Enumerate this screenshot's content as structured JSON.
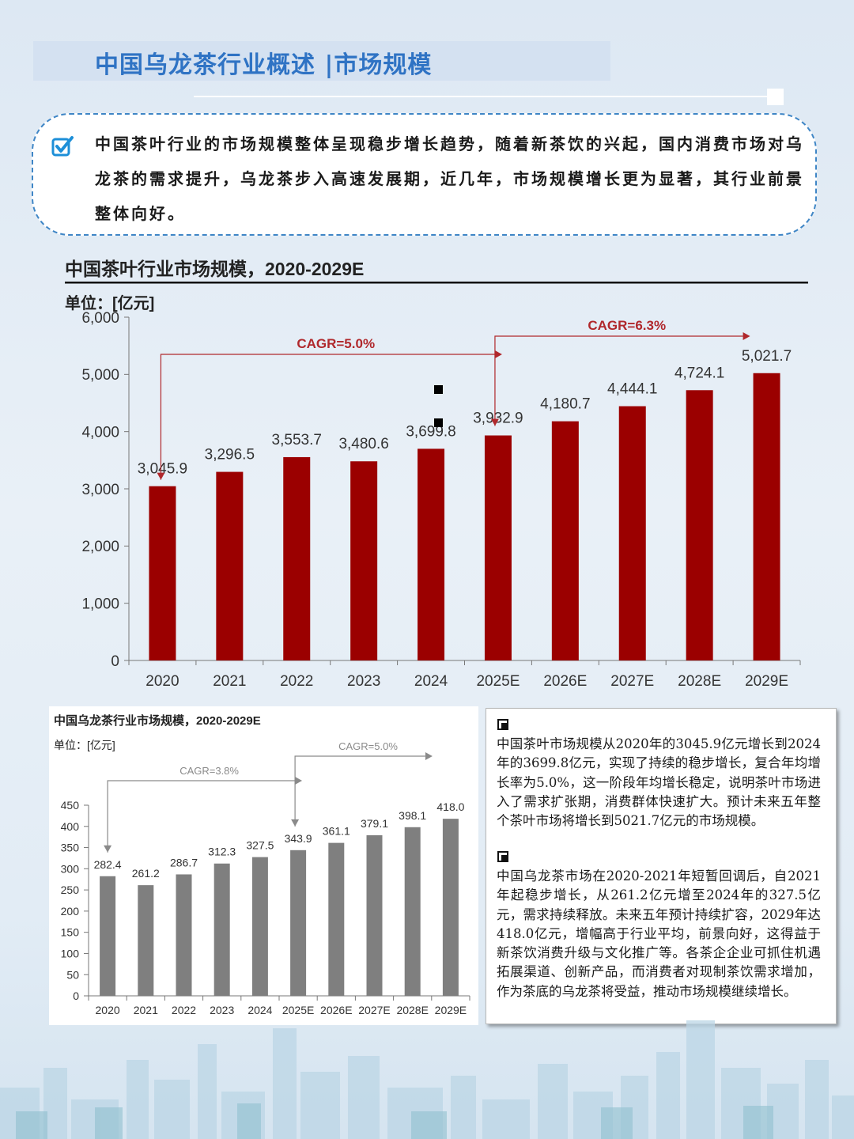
{
  "header": {
    "title": "中国乌龙茶行业概述 |市场规模"
  },
  "summary": {
    "text": "中国茶叶行业的市场规模整体呈现稳步增长趋势，随着新茶饮的兴起，国内消费市场对乌龙茶的需求提升，乌龙茶步入高速发展期，近几年，市场规模增长更为显著，其行业前景整体向好。"
  },
  "colors": {
    "title_blue": "#2f73c4",
    "bar_red": "#9b0000",
    "bar_gray": "#7f7f7f",
    "arrow_red": "#b0282c",
    "arrow_gray": "#8a8a8a"
  },
  "chart_data": [
    {
      "type": "bar",
      "title": "中国茶叶行业市场规模，2020-2029E",
      "unit_label": "单位：[亿元]",
      "categories": [
        "2020",
        "2021",
        "2022",
        "2023",
        "2024",
        "2025E",
        "2026E",
        "2027E",
        "2028E",
        "2029E"
      ],
      "values": [
        3045.9,
        3296.5,
        3553.7,
        3480.6,
        3699.8,
        3932.9,
        4180.7,
        4444.1,
        4724.1,
        5021.7
      ],
      "value_labels": [
        "3,045.9",
        "3,296.5",
        "3,553.7",
        "3,480.6",
        "3,699.8",
        "3,932.9",
        "4,180.7",
        "4,444.1",
        "4,724.1",
        "5,021.7"
      ],
      "ylim": [
        0,
        6000
      ],
      "yticks": [
        "0",
        "1,000",
        "2,000",
        "3,000",
        "4,000",
        "5,000",
        "6,000"
      ],
      "annotations": [
        {
          "text": "CAGR=5.0%",
          "from": "2020",
          "to": "2025E"
        },
        {
          "text": "CAGR=6.3%",
          "from": "2025E",
          "to": "2029E"
        }
      ]
    },
    {
      "type": "bar",
      "title": "中国乌龙茶行业市场规模，2020-2029E",
      "unit_label": "单位：[亿元]",
      "categories": [
        "2020",
        "2021",
        "2022",
        "2023",
        "2024",
        "2025E",
        "2026E",
        "2027E",
        "2028E",
        "2029E"
      ],
      "values": [
        282.4,
        261.2,
        286.7,
        312.3,
        327.5,
        343.9,
        361.1,
        379.1,
        398.1,
        418.0
      ],
      "value_labels": [
        "282.4",
        "261.2",
        "286.7",
        "312.3",
        "327.5",
        "343.9",
        "361.1",
        "379.1",
        "398.1",
        "418.0"
      ],
      "ylim": [
        0,
        450
      ],
      "yticks": [
        "0",
        "50",
        "100",
        "150",
        "200",
        "250",
        "300",
        "350",
        "400",
        "450"
      ],
      "annotations": [
        {
          "text": "CAGR=3.8%",
          "from": "2020",
          "to": "2025E"
        },
        {
          "text": "CAGR=5.0%",
          "from": "2025E",
          "to": "2029E"
        }
      ]
    }
  ],
  "notes": [
    "中国茶叶市场规模从2020年的3045.9亿元增长到2024年的3699.8亿元，实现了持续的稳步增长，复合年均增长率为5.0%，这一阶段年均增长稳定，说明茶叶市场进入了需求扩张期，消费群体快速扩大。预计未来五年整个茶叶市场将增长到5021.7亿元的市场规模。",
    "中国乌龙茶市场在2020-2021年短暂回调后，自2021年起稳步增长，从261.2亿元增至2024年的327.5亿元，需求持续释放。未来五年预计持续扩容，2029年达418.0亿元，增幅高于行业平均，前景向好，这得益于新茶饮消费升级与文化推广等。各茶企企业可抓住机遇拓展渠道、创新产品，而消费者对现制茶饮需求增加，作为茶底的乌龙茶将受益，推动市场规模继续增长。"
  ]
}
